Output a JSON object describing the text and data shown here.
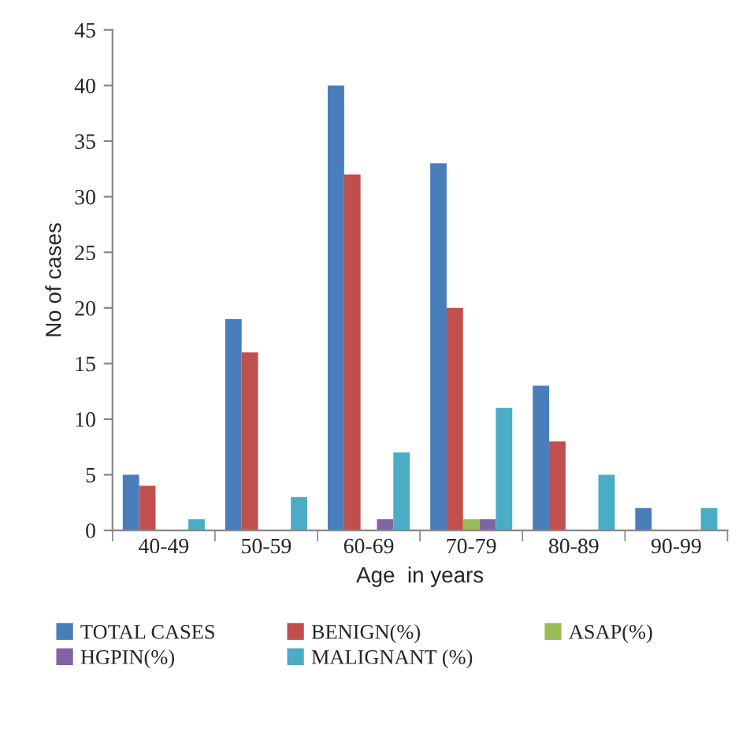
{
  "chart_data": {
    "type": "bar",
    "xlabel": "Age  in years",
    "ylabel": "No of cases",
    "categories": [
      "40-49",
      "50-59",
      "60-69",
      "70-79",
      "80-89",
      "90-99"
    ],
    "series": [
      {
        "name": "TOTAL CASES",
        "color": "#4a7ebb",
        "values": [
          5,
          19,
          40,
          33,
          13,
          2
        ]
      },
      {
        "name": "BENIGN(%)",
        "color": "#c0504d",
        "values": [
          4,
          16,
          32,
          20,
          8,
          0
        ]
      },
      {
        "name": "ASAP(%)",
        "color": "#9bbb59",
        "values": [
          0,
          0,
          0,
          1,
          0,
          0
        ]
      },
      {
        "name": "HGPIN(%)",
        "color": "#8064a2",
        "values": [
          0,
          0,
          1,
          1,
          0,
          0
        ]
      },
      {
        "name": "MALIGNANT (%)",
        "color": "#4bacc6",
        "values": [
          1,
          3,
          7,
          11,
          5,
          2
        ]
      }
    ],
    "ylim": [
      0,
      45
    ],
    "yticks": [
      0,
      5,
      10,
      15,
      20,
      25,
      30,
      35,
      40,
      45
    ],
    "grid": false,
    "legend": "bottom"
  }
}
